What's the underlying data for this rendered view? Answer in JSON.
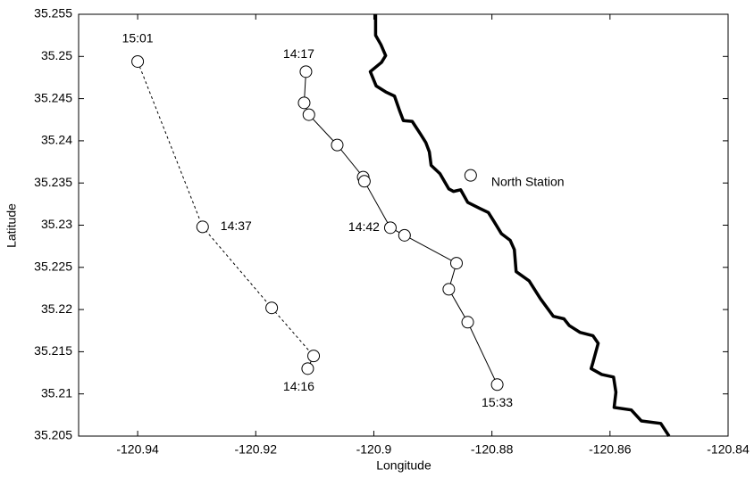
{
  "chart_data": {
    "type": "line",
    "x_label": "Longitude",
    "y_label": "Latitude",
    "xlim": [
      -120.95,
      -120.84
    ],
    "xticks": [
      -120.94,
      -120.92,
      -120.9,
      -120.88,
      -120.86,
      -120.84
    ],
    "ylim": [
      35.205,
      35.255
    ],
    "yticks": [
      35.205,
      35.21,
      35.215,
      35.22,
      35.225,
      35.23,
      35.235,
      35.24,
      35.245,
      35.25,
      35.255
    ],
    "grid": false,
    "series": [
      {
        "color": "#000000",
        "line_style": "dashed",
        "x": [
          -120.94,
          -120.929,
          -120.9173,
          -120.9102,
          -120.9112
        ],
        "values": [
          35.2494,
          35.2298,
          35.2202,
          35.2145,
          35.213
        ],
        "labels": [
          "15:01",
          "14:37",
          null,
          null,
          "14:16"
        ]
      },
      {
        "color": "#000000",
        "line_style": "solid",
        "x": [
          -120.9115,
          -120.9118,
          -120.911,
          -120.9062,
          -120.9018,
          -120.9016,
          -120.8972,
          -120.8948,
          -120.886,
          -120.8873,
          -120.8841,
          -120.8791
        ],
        "values": [
          35.2482,
          35.2445,
          35.2431,
          35.2395,
          35.2357,
          35.2352,
          35.2297,
          35.2288,
          35.2255,
          35.2224,
          35.2185,
          35.2111
        ],
        "labels": [
          "14:17",
          null,
          null,
          null,
          null,
          null,
          "14:42",
          null,
          null,
          null,
          null,
          "15:33"
        ]
      }
    ],
    "coastline": {
      "color": "#000000",
      "x": [
        -120.8997,
        -120.8997,
        -120.8988,
        -120.898,
        -120.8987,
        -120.9006,
        -120.8996,
        -120.898,
        -120.8965,
        -120.8956,
        -120.895,
        -120.8935,
        -120.8921,
        -120.8912,
        -120.8906,
        -120.8903,
        -120.8888,
        -120.8873,
        -120.8865,
        -120.8853,
        -120.8841,
        -120.8821,
        -120.8806,
        -120.8797,
        -120.8784,
        -120.8769,
        -120.8762,
        -120.8759,
        -120.8737,
        -120.8718,
        -120.8696,
        -120.8678,
        -120.8669,
        -120.8651,
        -120.8629,
        -120.862,
        -120.8629,
        -120.8632,
        -120.8614,
        -120.8594,
        -120.859,
        -120.8593,
        -120.8564,
        -120.8547,
        -120.8514,
        -120.85
      ],
      "values": [
        35.255,
        35.2525,
        35.2514,
        35.2501,
        35.2493,
        35.2482,
        35.2465,
        35.2458,
        35.2453,
        35.2435,
        35.2424,
        35.2423,
        35.2408,
        35.2398,
        35.2387,
        35.2371,
        35.2361,
        35.2343,
        35.234,
        35.2342,
        35.2327,
        35.232,
        35.2315,
        35.2305,
        35.229,
        35.2282,
        35.2271,
        35.2245,
        35.2234,
        35.2213,
        35.2192,
        35.2189,
        35.2181,
        35.2173,
        35.2169,
        35.216,
        35.2137,
        35.213,
        35.2123,
        35.212,
        35.2102,
        35.2084,
        35.2081,
        35.2068,
        35.2065,
        35.205
      ]
    },
    "station": {
      "label": "North Station",
      "x": -120.8836,
      "y": 35.2359
    }
  }
}
